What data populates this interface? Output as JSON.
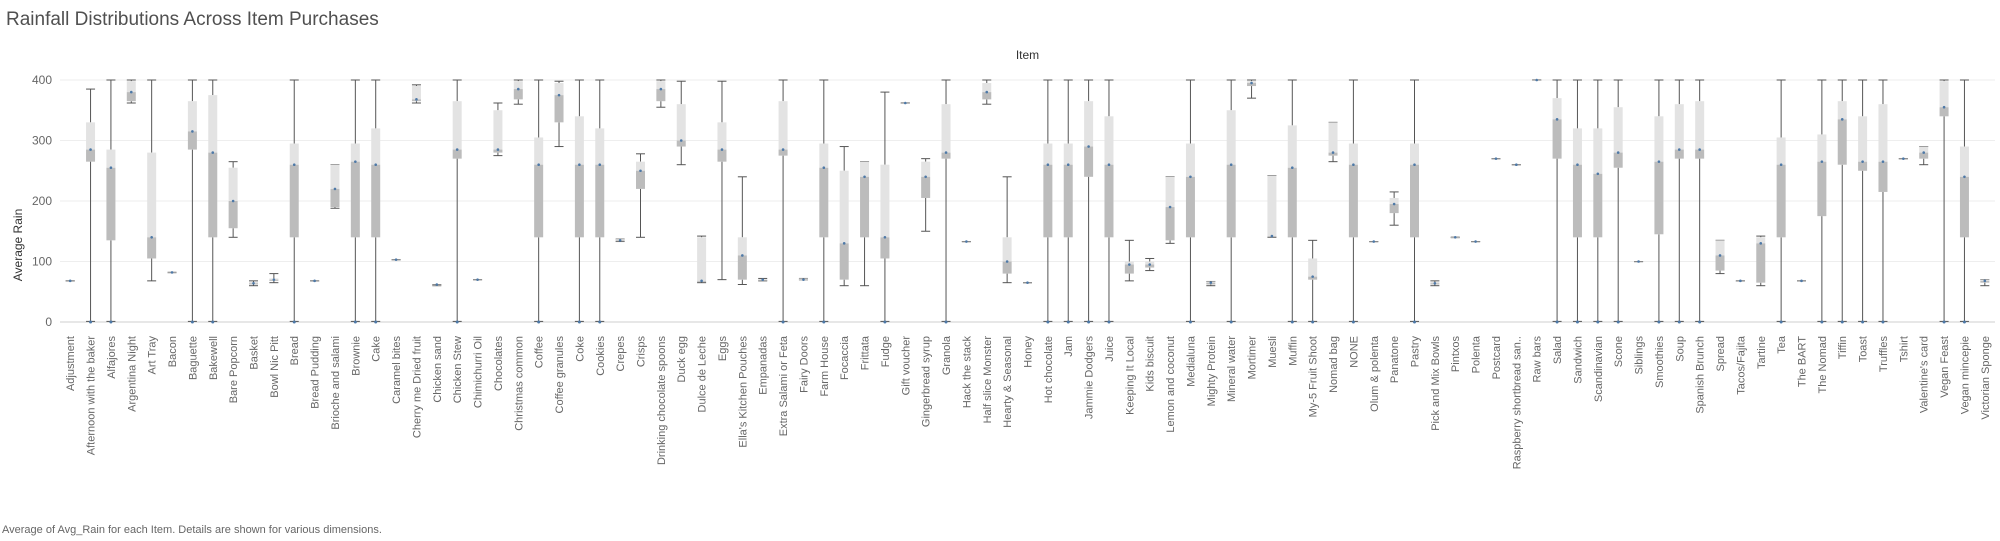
{
  "title": "Rainfall Distributions Across Item Purchases",
  "footer": "Average of Avg_Rain for each Item.  Details are shown for various dimensions.",
  "colors": {
    "box_light": "#e3e3e3",
    "box_dark": "#bcbcbc",
    "whisker": "#555555",
    "dot": "#4e79a7",
    "grid": "#eeeeee"
  },
  "chart_data": {
    "type": "boxplot",
    "title": "Rainfall Distributions Across Item Purchases",
    "column_header": "Item",
    "ylabel": "Average Rain",
    "ylim": [
      0,
      400
    ],
    "yticks": [
      0,
      100,
      200,
      300,
      400
    ],
    "grid": true,
    "categories": [
      "Adjustment",
      "Afternoon with the baker",
      "Alfajores",
      "Argentina Night",
      "Art Tray",
      "Bacon",
      "Baguette",
      "Bakewell",
      "Bare Popcorn",
      "Basket",
      "Bowl Nic Pitt",
      "Bread",
      "Bread Pudding",
      "Brioche and salami",
      "Brownie",
      "Cake",
      "Caramel bites",
      "Cherry me Dried fruit",
      "Chicken sand",
      "Chicken Stew",
      "Chimichurri Oil",
      "Chocolates",
      "Christmas common",
      "Coffee",
      "Coffee granules",
      "Coke",
      "Cookies",
      "Crepes",
      "Crisps",
      "Drinking chocolate spoons",
      "Duck egg",
      "Dulce de Leche",
      "Eggs",
      "Ella's Kitchen Pouches",
      "Empanadas",
      "Extra Salami or Feta",
      "Fairy Doors",
      "Farm House",
      "Focaccia",
      "Frittata",
      "Fudge",
      "Gift voucher",
      "Gingerbread syrup",
      "Granola",
      "Hack the stack",
      "Half slice Monster",
      "Hearty & Seasonal",
      "Honey",
      "Hot chocolate",
      "Jam",
      "Jammie Dodgers",
      "Juice",
      "Keeping It Local",
      "Kids biscuit",
      "Lemon and coconut",
      "Medialuna",
      "Mighty Protein",
      "Mineral water",
      "Mortimer",
      "Muesli",
      "Muffin",
      "My-5 Fruit Shoot",
      "Nomad bag",
      "NONE",
      "Olum & polenta",
      "Panatone",
      "Pastry",
      "Pick and Mix Bowls",
      "Pintxos",
      "Polenta",
      "Postcard",
      "Raspberry shortbread san..",
      "Raw bars",
      "Salad",
      "Sandwich",
      "Scandinavian",
      "Scone",
      "Siblings",
      "Smoothies",
      "Soup",
      "Spanish Brunch",
      "Spread",
      "Tacos/Fajita",
      "Tartine",
      "Tea",
      "The BART",
      "The Nomad",
      "Tiffin",
      "Toast",
      "Truffles",
      "Tshirt",
      "Valentine's card",
      "Vegan Feast",
      "Vegan mincepie",
      "Victorian Sponge"
    ],
    "series": [
      {
        "name": "min",
        "values": [
          68,
          1,
          1,
          362,
          68,
          82,
          1,
          1,
          140,
          60,
          65,
          1,
          68,
          188,
          1,
          1,
          103,
          362,
          60,
          1,
          70,
          275,
          360,
          1,
          290,
          1,
          1,
          133,
          140,
          355,
          260,
          65,
          70,
          62,
          68,
          1,
          70,
          1,
          60,
          60,
          1,
          362,
          150,
          1,
          133,
          360,
          65,
          65,
          1,
          1,
          1,
          1,
          68,
          85,
          130,
          1,
          60,
          1,
          370,
          140,
          1,
          1,
          265,
          1,
          133,
          160,
          1,
          60,
          140,
          133,
          270,
          260,
          400,
          1,
          1,
          1,
          1,
          100,
          1,
          1,
          1,
          80,
          68,
          60,
          1,
          68,
          1,
          1,
          1,
          1,
          270,
          260,
          1,
          1,
          60
        ]
      },
      {
        "name": "q1",
        "values": [
          68,
          265,
          135,
          365,
          105,
          82,
          285,
          140,
          155,
          62,
          68,
          140,
          68,
          190,
          140,
          140,
          103,
          365,
          60,
          270,
          70,
          280,
          368,
          140,
          330,
          140,
          140,
          135,
          220,
          365,
          290,
          68,
          265,
          70,
          70,
          275,
          70,
          140,
          70,
          140,
          105,
          362,
          205,
          270,
          133,
          368,
          80,
          65,
          140,
          140,
          240,
          140,
          80,
          90,
          135,
          140,
          62,
          140,
          390,
          142,
          140,
          70,
          275,
          140,
          133,
          180,
          140,
          62,
          140,
          133,
          270,
          260,
          400,
          270,
          140,
          140,
          255,
          100,
          145,
          270,
          270,
          85,
          68,
          65,
          140,
          68,
          175,
          260,
          250,
          215,
          270,
          270,
          340,
          140,
          65
        ]
      },
      {
        "name": "median",
        "values": [
          68,
          285,
          255,
          380,
          140,
          82,
          315,
          280,
          200,
          64,
          70,
          260,
          68,
          220,
          265,
          260,
          103,
          368,
          62,
          285,
          70,
          285,
          385,
          260,
          375,
          260,
          260,
          135,
          250,
          385,
          300,
          68,
          285,
          110,
          70,
          285,
          70,
          255,
          130,
          240,
          140,
          362,
          240,
          280,
          133,
          380,
          100,
          65,
          260,
          260,
          290,
          260,
          95,
          95,
          190,
          240,
          65,
          260,
          395,
          142,
          255,
          75,
          280,
          260,
          133,
          195,
          260,
          64,
          140,
          133,
          270,
          260,
          400,
          335,
          260,
          245,
          280,
          100,
          265,
          285,
          285,
          110,
          68,
          130,
          260,
          68,
          265,
          335,
          265,
          265,
          270,
          280,
          355,
          240,
          68
        ]
      },
      {
        "name": "q3",
        "values": [
          68,
          330,
          285,
          398,
          280,
          82,
          365,
          375,
          255,
          66,
          72,
          295,
          68,
          260,
          295,
          320,
          103,
          390,
          62,
          365,
          70,
          350,
          398,
          305,
          395,
          340,
          320,
          137,
          265,
          398,
          360,
          140,
          330,
          140,
          70,
          365,
          72,
          295,
          250,
          265,
          260,
          362,
          265,
          360,
          133,
          395,
          140,
          65,
          295,
          295,
          365,
          340,
          100,
          100,
          240,
          295,
          67,
          350,
          398,
          242,
          325,
          105,
          330,
          295,
          133,
          205,
          295,
          66,
          140,
          133,
          270,
          260,
          400,
          370,
          320,
          320,
          355,
          100,
          340,
          360,
          365,
          135,
          68,
          140,
          305,
          68,
          310,
          365,
          340,
          360,
          270,
          290,
          398,
          290,
          70
        ]
      },
      {
        "name": "max",
        "values": [
          68,
          385,
          400,
          400,
          400,
          82,
          400,
          400,
          265,
          68,
          80,
          400,
          68,
          260,
          400,
          400,
          103,
          392,
          62,
          400,
          70,
          362,
          400,
          400,
          398,
          400,
          400,
          137,
          278,
          400,
          398,
          142,
          398,
          240,
          72,
          400,
          72,
          400,
          290,
          265,
          380,
          362,
          270,
          400,
          133,
          400,
          240,
          65,
          400,
          400,
          400,
          400,
          135,
          105,
          240,
          400,
          67,
          400,
          400,
          242,
          400,
          135,
          330,
          400,
          133,
          215,
          400,
          68,
          140,
          133,
          270,
          260,
          400,
          400,
          400,
          400,
          400,
          100,
          400,
          400,
          400,
          135,
          68,
          142,
          400,
          68,
          400,
          400,
          400,
          400,
          270,
          290,
          400,
          400,
          70
        ]
      }
    ]
  }
}
